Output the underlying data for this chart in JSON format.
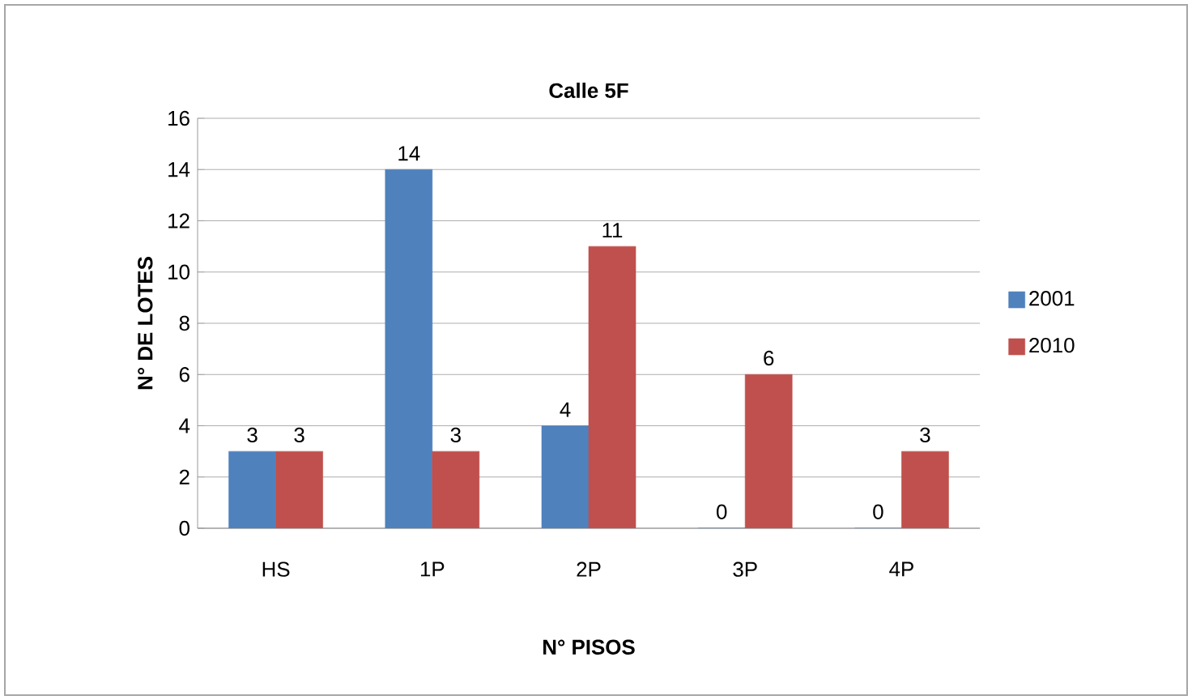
{
  "chart_data": {
    "type": "bar",
    "title": "Calle 5F",
    "xlabel": "N° PISOS",
    "ylabel": "N° DE LOTES",
    "categories": [
      "HS",
      "1P",
      "2P",
      "3P",
      "4P"
    ],
    "series": [
      {
        "name": "2001",
        "color": "#4f81bd",
        "values": [
          3,
          14,
          4,
          0,
          0
        ]
      },
      {
        "name": "2010",
        "color": "#c0504d",
        "values": [
          3,
          3,
          11,
          6,
          3
        ]
      }
    ],
    "ylim": [
      0,
      16
    ],
    "yticks": [
      0,
      2,
      4,
      6,
      8,
      10,
      12,
      14,
      16
    ],
    "grid": "y",
    "legend": "right",
    "data_labels": true
  }
}
